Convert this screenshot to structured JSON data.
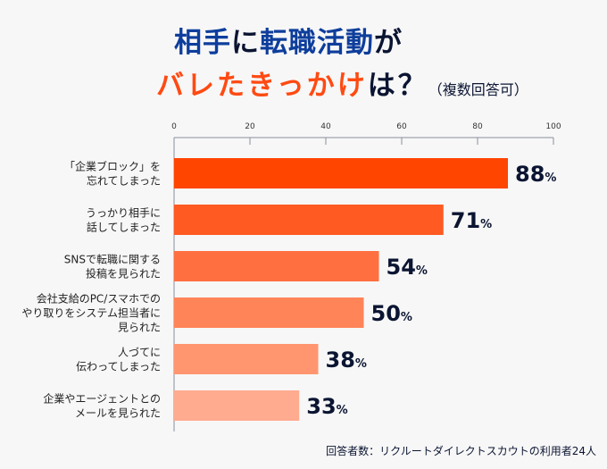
{
  "title": {
    "line1": [
      {
        "text": "相手",
        "color": "blue"
      },
      {
        "text": "に",
        "color": "dark"
      },
      {
        "text": "転職活動",
        "color": "blue"
      },
      {
        "text": "が",
        "color": "dark"
      }
    ],
    "line2": [
      {
        "text": "バレたきっかけ",
        "color": "orange"
      },
      {
        "text": "は？",
        "color": "dark"
      }
    ],
    "note": "（複数回答可）"
  },
  "footnote": "回答者数：リクルートダイレクトスカウトの利用者24人",
  "colors": {
    "blue": "#0e3e9c",
    "dark": "#0b1532",
    "orange": "#ff4a12"
  },
  "chart_data": {
    "type": "bar",
    "orientation": "horizontal",
    "xlim": [
      0,
      100
    ],
    "xticks": [
      0,
      20,
      40,
      60,
      80,
      100
    ],
    "value_suffix": "%",
    "grid": false,
    "categories": [
      [
        "「企業ブロック」を",
        "忘れてしまった"
      ],
      [
        "うっかり相手に",
        "話してしまった"
      ],
      [
        "SNSで転職に関する",
        "投稿を見られた"
      ],
      [
        "会社支給のPC/スマホでの",
        "やり取りをシステム担当者に",
        "見られた"
      ],
      [
        "人づてに",
        "伝わってしまった"
      ],
      [
        "企業やエージェントとの",
        "メールを見られた"
      ]
    ],
    "values": [
      88,
      71,
      54,
      50,
      38,
      33
    ],
    "bar_colors": [
      "#ff4500",
      "#ff5a22",
      "#ff6f40",
      "#ff8458",
      "#ff9670",
      "#ffab8f"
    ]
  }
}
